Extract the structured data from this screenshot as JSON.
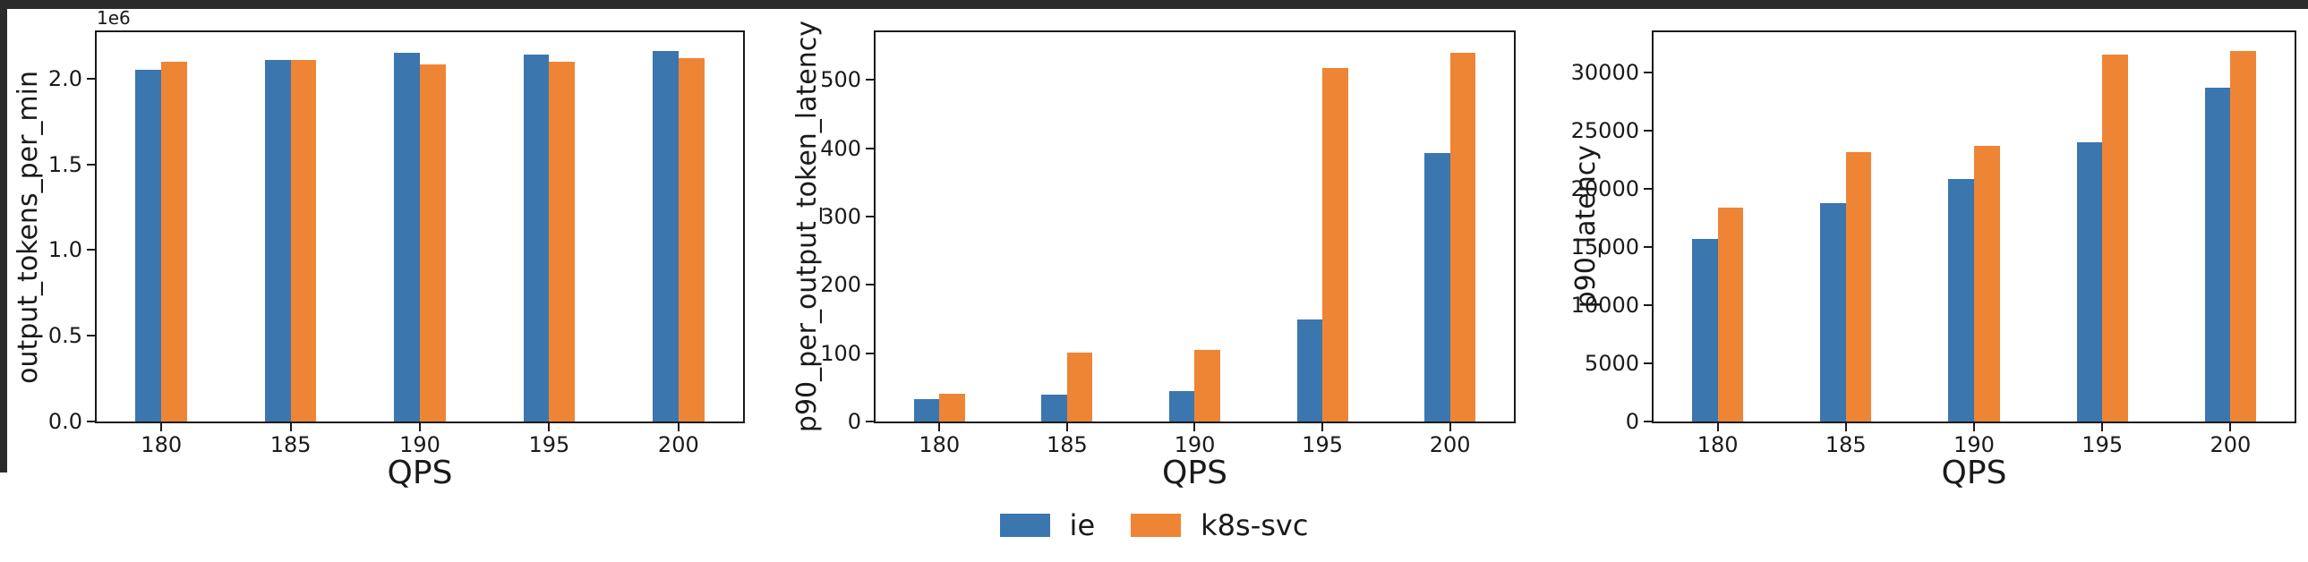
{
  "figure": {
    "background": "#ffffff",
    "window_edge_color": "#2b2b2b"
  },
  "legend": {
    "position": "bottom-center",
    "items": [
      {
        "label": "ie",
        "color": "#3b76af"
      },
      {
        "label": "k8s-svc",
        "color": "#ee8535"
      }
    ]
  },
  "chart_data": [
    {
      "type": "bar",
      "title": "",
      "xlabel": "QPS",
      "ylabel": "output_tokens_per_min",
      "offset_label": "1e6",
      "categories": [
        "180",
        "185",
        "190",
        "195",
        "200"
      ],
      "series": [
        {
          "name": "ie",
          "color": "#3b76af",
          "values": [
            2050000,
            2110000,
            2150000,
            2140000,
            2160000
          ]
        },
        {
          "name": "k8s-svc",
          "color": "#ee8535",
          "values": [
            2100000,
            2110000,
            2080000,
            2100000,
            2120000
          ]
        }
      ],
      "yticks": [
        {
          "label": "0.0",
          "value": 0
        },
        {
          "label": "0.5",
          "value": 500000
        },
        {
          "label": "1.0",
          "value": 1000000
        },
        {
          "label": "1.5",
          "value": 1500000
        },
        {
          "label": "2.0",
          "value": 2000000
        }
      ],
      "ylim": [
        0,
        2270000
      ],
      "grid": false,
      "legend_position": "shared-bottom"
    },
    {
      "type": "bar",
      "title": "",
      "xlabel": "QPS",
      "ylabel": "p90_per_output_token_latency",
      "offset_label": "",
      "categories": [
        "180",
        "185",
        "190",
        "195",
        "200"
      ],
      "series": [
        {
          "name": "ie",
          "color": "#3b76af",
          "values": [
            33,
            39,
            45,
            150,
            393
          ]
        },
        {
          "name": "k8s-svc",
          "color": "#ee8535",
          "values": [
            40,
            101,
            105,
            517,
            540
          ]
        }
      ],
      "yticks": [
        {
          "label": "0",
          "value": 0
        },
        {
          "label": "100",
          "value": 100
        },
        {
          "label": "200",
          "value": 200
        },
        {
          "label": "300",
          "value": 300
        },
        {
          "label": "400",
          "value": 400
        },
        {
          "label": "500",
          "value": 500
        }
      ],
      "ylim": [
        0,
        570
      ],
      "grid": false,
      "legend_position": "shared-bottom"
    },
    {
      "type": "bar",
      "title": "",
      "xlabel": "QPS",
      "ylabel": "p90_latency",
      "offset_label": "",
      "categories": [
        "180",
        "185",
        "190",
        "195",
        "200"
      ],
      "series": [
        {
          "name": "ie",
          "color": "#3b76af",
          "values": [
            15700,
            18800,
            20900,
            24000,
            28700
          ]
        },
        {
          "name": "k8s-svc",
          "color": "#ee8535",
          "values": [
            18400,
            23200,
            23700,
            31600,
            31900
          ]
        }
      ],
      "yticks": [
        {
          "label": "0",
          "value": 0
        },
        {
          "label": "5000",
          "value": 5000
        },
        {
          "label": "10000",
          "value": 10000
        },
        {
          "label": "15000",
          "value": 15000
        },
        {
          "label": "20000",
          "value": 20000
        },
        {
          "label": "25000",
          "value": 25000
        },
        {
          "label": "30000",
          "value": 30000
        }
      ],
      "ylim": [
        0,
        33500
      ],
      "grid": false,
      "legend_position": "shared-bottom"
    }
  ]
}
